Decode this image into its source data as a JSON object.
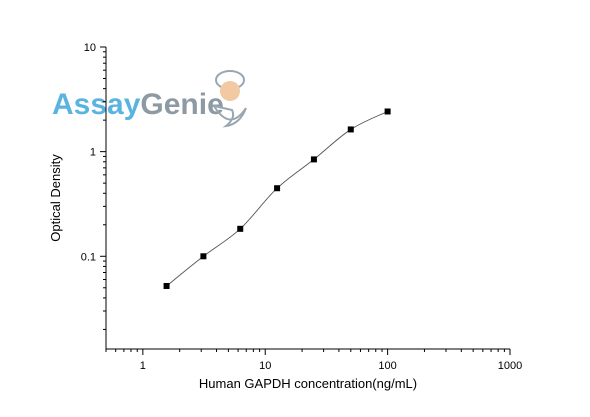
{
  "chart_data": {
    "type": "scatter",
    "title": "",
    "xlabel": "Human GAPDH concentration(ng/mL)",
    "ylabel": "Optical Density",
    "x_scale": "log",
    "y_scale": "log",
    "xlim": [
      0.5,
      1000
    ],
    "ylim": [
      0.013,
      10
    ],
    "x_ticks": [
      1,
      10,
      100,
      1000
    ],
    "x_tick_labels": [
      "1",
      "10",
      "100",
      "1000"
    ],
    "y_ticks": [
      0.1,
      1,
      10
    ],
    "y_tick_labels": [
      "0.1",
      "1",
      "10"
    ],
    "grid": false,
    "legend": "none",
    "series": [
      {
        "x": [
          1.5625,
          3.125,
          6.25,
          12.5,
          25,
          50,
          100
        ],
        "y": [
          0.052,
          0.1,
          0.183,
          0.447,
          0.843,
          1.63,
          2.42
        ],
        "marker": "square",
        "fit_line": true
      }
    ],
    "colors": {
      "marker": "#000000",
      "fit_line": "#555555",
      "axis": "#000000"
    }
  },
  "logo": {
    "part1": "Assay",
    "part2": "Genie",
    "colors": {
      "part1": "#5bb4e0",
      "part2": "#8d9aa4",
      "genie_face": "#f3c9a4",
      "genie_body": "#9aa7b1"
    }
  }
}
